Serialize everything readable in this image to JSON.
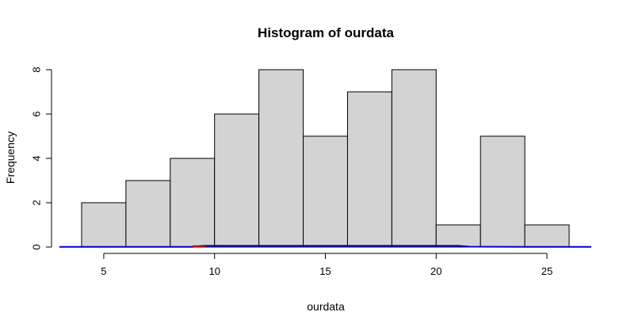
{
  "chart_data": {
    "type": "bar",
    "title": "Histogram of ourdata",
    "xlabel": "ourdata",
    "ylabel": "Frequency",
    "bin_edges": [
      4,
      6,
      8,
      10,
      12,
      14,
      16,
      18,
      20,
      22,
      24,
      26
    ],
    "values": [
      2,
      3,
      4,
      6,
      8,
      5,
      7,
      8,
      1,
      5,
      1
    ],
    "xlim": [
      3,
      27
    ],
    "ylim": [
      0,
      8
    ],
    "x_ticks": [
      5,
      10,
      15,
      20,
      25
    ],
    "y_ticks": [
      0,
      2,
      4,
      6,
      8
    ],
    "bar_fill": "#d3d3d3",
    "bar_stroke": "#000000",
    "density_curves": [
      {
        "color": "#0000cc",
        "x": [
          3,
          6,
          9,
          9.5,
          12,
          15,
          18,
          21,
          21.5,
          24,
          27
        ],
        "y": [
          0.01,
          0.01,
          0.01,
          0.06,
          0.06,
          0.06,
          0.06,
          0.06,
          0.02,
          0.01,
          0.01
        ]
      },
      {
        "color": "#cc0000",
        "x": [
          9,
          9.6
        ],
        "y": [
          0.04,
          0.04
        ]
      }
    ],
    "grid": false,
    "legend": "none"
  }
}
